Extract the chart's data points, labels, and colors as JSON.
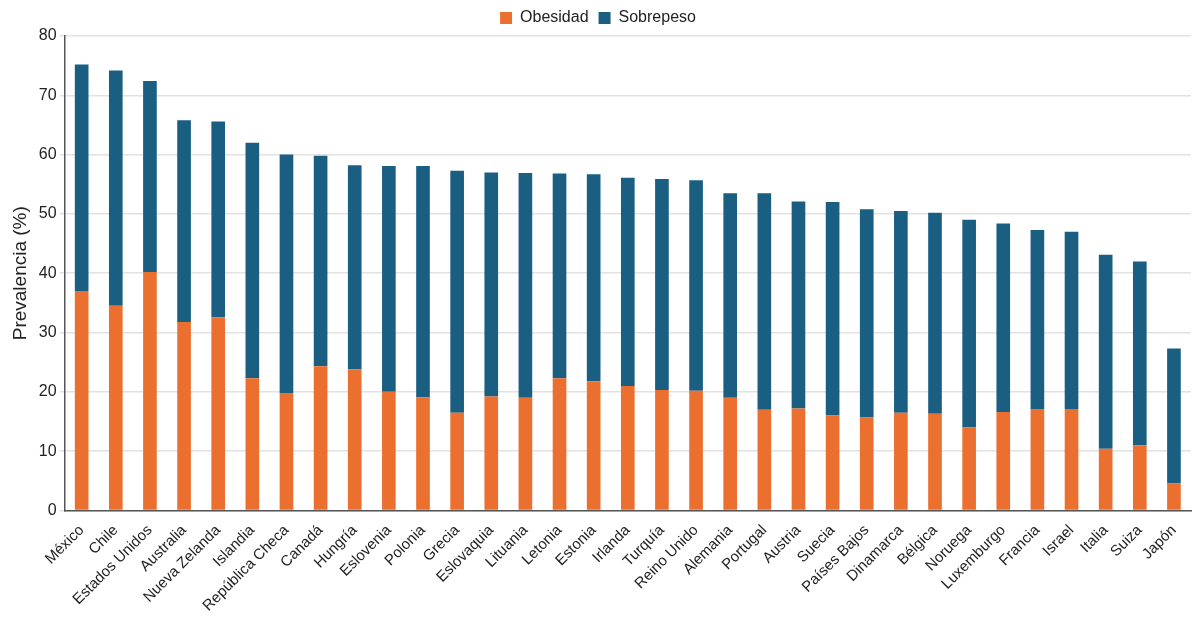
{
  "chart_data": {
    "type": "bar",
    "stacked": true,
    "ylabel": "Prevalencia (%)",
    "categories": [
      "México",
      "Chile",
      "Estados Unidos",
      "Australia",
      "Nueva Zelanda",
      "Islandia",
      "República Checa",
      "Canadá",
      "Hungría",
      "Eslovenia",
      "Polonia",
      "Grecia",
      "Eslovaquia",
      "Lituania",
      "Letonia",
      "Estonia",
      "Irlanda",
      "Turquía",
      "Reino Unido",
      "Alemania",
      "Portugal",
      "Austria",
      "Suecia",
      "Países Bajos",
      "Dinamarca",
      "Bélgica",
      "Noruega",
      "Luxemburgo",
      "Francia",
      "Israel",
      "Italia",
      "Suiza",
      "Japón"
    ],
    "series": [
      {
        "name": "Obesidad",
        "color": "#eb7030",
        "values": [
          37.0,
          34.5,
          40.2,
          31.8,
          32.6,
          22.3,
          19.8,
          24.3,
          23.8,
          20.0,
          19.1,
          16.5,
          19.2,
          19.0,
          22.3,
          21.8,
          21.0,
          20.3,
          20.2,
          19.0,
          17.0,
          17.2,
          16.0,
          15.7,
          16.5,
          16.3,
          14.0,
          16.6,
          17.1,
          17.1,
          10.4,
          11.0,
          4.6
        ]
      },
      {
        "name": "Sobrepeso",
        "color": "#1a5e82",
        "values": [
          38.2,
          39.7,
          32.2,
          34.0,
          33.0,
          39.7,
          40.2,
          35.5,
          34.4,
          38.1,
          39.0,
          40.8,
          37.8,
          37.9,
          34.5,
          34.9,
          35.1,
          35.6,
          35.5,
          34.5,
          36.5,
          34.9,
          36.0,
          35.1,
          34.0,
          33.9,
          35.0,
          31.8,
          30.2,
          29.9,
          32.7,
          31.0,
          22.7
        ]
      }
    ],
    "ylim": [
      0,
      80
    ],
    "yticks": [
      0,
      10,
      20,
      30,
      40,
      50,
      60,
      70,
      80
    ],
    "grid": "y",
    "legend": "top"
  }
}
